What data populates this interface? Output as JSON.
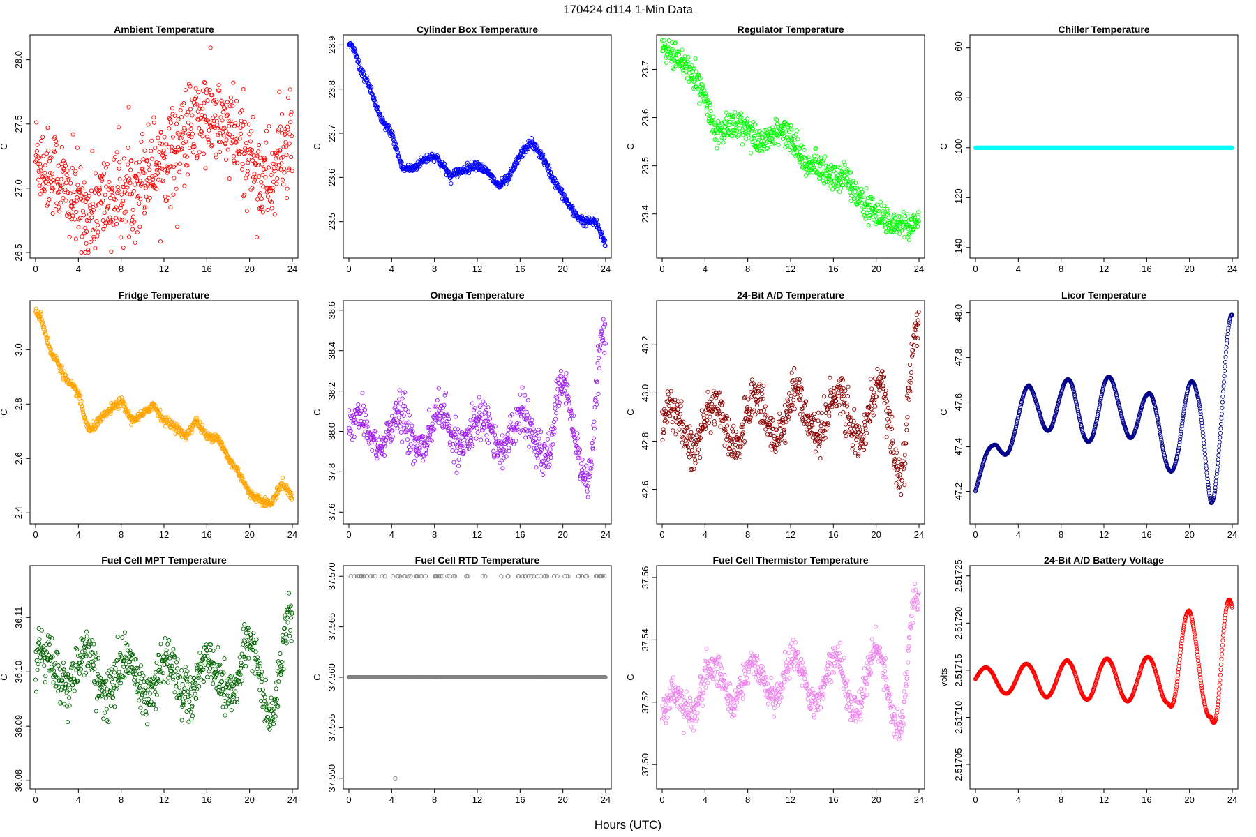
{
  "figure": {
    "suptitle": "170424    d114    1-Min Data",
    "xlabel": "Hours (UTC)"
  },
  "chart_data": [
    {
      "type": "scatter",
      "title": "Ambient Temperature",
      "ylabel": "C",
      "color": "#ff0000",
      "xlim": [
        0,
        24
      ],
      "ylim": [
        26.5,
        28.15
      ],
      "xticks": [
        0,
        4,
        8,
        12,
        16,
        20,
        24
      ],
      "yticks": [
        26.5,
        27.0,
        27.5,
        28.0
      ],
      "ytick_labels": [
        "26.5",
        "27.0",
        "27.5",
        "28.0"
      ],
      "trend": [
        [
          0,
          27.25
        ],
        [
          1,
          27.15
        ],
        [
          2,
          27.1
        ],
        [
          3,
          26.95
        ],
        [
          4,
          26.85
        ],
        [
          5,
          26.8
        ],
        [
          6,
          26.9
        ],
        [
          7,
          26.9
        ],
        [
          8,
          26.95
        ],
        [
          9,
          27.0
        ],
        [
          10,
          27.1
        ],
        [
          11,
          27.2
        ],
        [
          12,
          27.25
        ],
        [
          13,
          27.3
        ],
        [
          14,
          27.4
        ],
        [
          15,
          27.5
        ],
        [
          16,
          27.55
        ],
        [
          17,
          27.5
        ],
        [
          18,
          27.45
        ],
        [
          19,
          27.35
        ],
        [
          20,
          27.25
        ],
        [
          21,
          27.1
        ],
        [
          22,
          27.05
        ],
        [
          23,
          27.3
        ],
        [
          24,
          27.3
        ]
      ],
      "noise": 0.18,
      "spread": 0.09,
      "style": "scatter",
      "n": 1440
    },
    {
      "type": "scatter",
      "title": "Cylinder Box Temperature",
      "ylabel": "C",
      "color": "#0000ff",
      "xlim": [
        0,
        24
      ],
      "ylim": [
        23.43,
        23.91
      ],
      "xticks": [
        0,
        4,
        8,
        12,
        16,
        20,
        24
      ],
      "yticks": [
        23.5,
        23.6,
        23.7,
        23.8,
        23.9
      ],
      "ytick_labels": [
        "23.5",
        "23.6",
        "23.7",
        "23.8",
        "23.9"
      ],
      "trend": [
        [
          0,
          23.9
        ],
        [
          0.5,
          23.89
        ],
        [
          1,
          23.85
        ],
        [
          2,
          23.8
        ],
        [
          3,
          23.73
        ],
        [
          4,
          23.7
        ],
        [
          4.5,
          23.66
        ],
        [
          5,
          23.62
        ],
        [
          6,
          23.62
        ],
        [
          7,
          23.64
        ],
        [
          8,
          23.65
        ],
        [
          9,
          23.62
        ],
        [
          9.5,
          23.6
        ],
        [
          10,
          23.61
        ],
        [
          11,
          23.62
        ],
        [
          12,
          23.63
        ],
        [
          13,
          23.61
        ],
        [
          14,
          23.58
        ],
        [
          15,
          23.6
        ],
        [
          16,
          23.65
        ],
        [
          17,
          23.68
        ],
        [
          18,
          23.65
        ],
        [
          19,
          23.6
        ],
        [
          20,
          23.56
        ],
        [
          21,
          23.52
        ],
        [
          22,
          23.5
        ],
        [
          23,
          23.5
        ],
        [
          24,
          23.45
        ]
      ],
      "noise": 0.005,
      "spread": 0.0,
      "style": "line-ish",
      "n": 1440
    },
    {
      "type": "scatter",
      "title": "Regulator Temperature",
      "ylabel": "C",
      "color": "#00ff00",
      "xlim": [
        0,
        24
      ],
      "ylim": [
        23.32,
        23.76
      ],
      "xticks": [
        0,
        4,
        8,
        12,
        16,
        20,
        24
      ],
      "yticks": [
        23.4,
        23.5,
        23.6,
        23.7
      ],
      "ytick_labels": [
        "23.4",
        "23.5",
        "23.6",
        "23.7"
      ],
      "trend": [
        [
          0,
          23.75
        ],
        [
          1,
          23.73
        ],
        [
          2,
          23.71
        ],
        [
          3,
          23.69
        ],
        [
          4,
          23.64
        ],
        [
          5,
          23.56
        ],
        [
          6,
          23.58
        ],
        [
          7,
          23.59
        ],
        [
          8,
          23.58
        ],
        [
          9,
          23.55
        ],
        [
          10,
          23.56
        ],
        [
          11,
          23.57
        ],
        [
          12,
          23.56
        ],
        [
          13,
          23.52
        ],
        [
          14,
          23.5
        ],
        [
          15,
          23.5
        ],
        [
          16,
          23.47
        ],
        [
          17,
          23.48
        ],
        [
          18,
          23.44
        ],
        [
          19,
          23.42
        ],
        [
          20,
          23.4
        ],
        [
          21,
          23.39
        ],
        [
          22,
          23.38
        ],
        [
          23,
          23.37
        ],
        [
          24,
          23.39
        ]
      ],
      "noise": 0.02,
      "spread": 0.02,
      "style": "band",
      "n": 1440
    },
    {
      "type": "scatter",
      "title": "Chiller Temperature",
      "ylabel": "C",
      "color": "#00ffff",
      "xlim": [
        0,
        24
      ],
      "ylim": [
        -142,
        -57
      ],
      "xticks": [
        0,
        4,
        8,
        12,
        16,
        20,
        24
      ],
      "yticks": [
        -140,
        -120,
        -100,
        -80,
        -60
      ],
      "ytick_labels": [
        "-140",
        "-120",
        "-100",
        "-80",
        "-60"
      ],
      "trend": [
        [
          0,
          -100
        ],
        [
          24,
          -100
        ]
      ],
      "noise": 0,
      "spread": 0,
      "style": "flat",
      "n": 1440
    },
    {
      "type": "scatter",
      "title": "Fridge Temperature",
      "ylabel": "C",
      "color": "#ffa500",
      "xlim": [
        0,
        24
      ],
      "ylim": [
        2.38,
        3.16
      ],
      "xticks": [
        0,
        4,
        8,
        12,
        16,
        20,
        24
      ],
      "yticks": [
        2.4,
        2.6,
        2.8,
        3.0
      ],
      "ytick_labels": [
        "2.4",
        "2.6",
        "2.8",
        "3.0"
      ],
      "trend": [
        [
          0,
          3.14
        ],
        [
          0.5,
          3.12
        ],
        [
          1,
          3.05
        ],
        [
          1.5,
          2.98
        ],
        [
          2,
          2.96
        ],
        [
          3,
          2.88
        ],
        [
          3.5,
          2.86
        ],
        [
          4,
          2.84
        ],
        [
          4.5,
          2.76
        ],
        [
          5,
          2.7
        ],
        [
          6,
          2.74
        ],
        [
          7,
          2.78
        ],
        [
          8,
          2.81
        ],
        [
          9,
          2.74
        ],
        [
          10,
          2.76
        ],
        [
          11,
          2.8
        ],
        [
          12,
          2.74
        ],
        [
          13,
          2.72
        ],
        [
          14,
          2.68
        ],
        [
          15,
          2.74
        ],
        [
          16,
          2.68
        ],
        [
          17,
          2.68
        ],
        [
          18,
          2.6
        ],
        [
          19,
          2.55
        ],
        [
          20,
          2.47
        ],
        [
          21,
          2.45
        ],
        [
          22,
          2.43
        ],
        [
          23,
          2.51
        ],
        [
          24,
          2.46
        ]
      ],
      "noise": 0.008,
      "spread": 0.0,
      "style": "line-ish",
      "n": 1440
    },
    {
      "type": "scatter",
      "title": "Omega Temperature",
      "ylabel": "C",
      "color": "#a020f0",
      "xlim": [
        0,
        24
      ],
      "ylim": [
        37.57,
        38.62
      ],
      "xticks": [
        0,
        4,
        8,
        12,
        16,
        20,
        24
      ],
      "yticks": [
        37.6,
        37.8,
        38.0,
        38.2,
        38.4,
        38.6
      ],
      "ytick_labels": [
        "37.6",
        "37.8",
        "38.0",
        "38.2",
        "38.4",
        "38.6"
      ],
      "trend": [
        [
          0,
          38.0
        ],
        [
          24,
          38.0
        ]
      ],
      "noise": 0.08,
      "spread": 0.0,
      "style": "osc",
      "amp": [
        [
          0,
          0.08
        ],
        [
          18,
          0.1
        ],
        [
          19,
          0.25
        ],
        [
          22,
          0.2
        ],
        [
          23,
          0.55
        ],
        [
          24,
          0.45
        ]
      ],
      "n": 1440
    },
    {
      "type": "scatter",
      "title": "24-Bit A/D Temperature",
      "ylabel": "C",
      "color": "#8b0000",
      "xlim": [
        0,
        24
      ],
      "ylim": [
        42.48,
        43.36
      ],
      "xticks": [
        0,
        4,
        8,
        12,
        16,
        20,
        24
      ],
      "yticks": [
        42.6,
        42.8,
        43.0,
        43.2
      ],
      "ytick_labels": [
        "42.6",
        "42.8",
        "43.0",
        "43.2"
      ],
      "trend": [
        [
          0,
          42.86
        ],
        [
          4,
          42.86
        ],
        [
          8,
          42.88
        ],
        [
          12,
          42.92
        ],
        [
          16,
          42.92
        ],
        [
          20,
          42.88
        ],
        [
          22,
          42.9
        ],
        [
          24,
          42.95
        ]
      ],
      "noise": 0.07,
      "spread": 0.04,
      "style": "osc",
      "amp": [
        [
          0,
          0.08
        ],
        [
          18,
          0.1
        ],
        [
          22,
          0.2
        ],
        [
          23,
          0.4
        ],
        [
          24,
          0.35
        ]
      ],
      "n": 1440
    },
    {
      "type": "scatter",
      "title": "Licor Temperature",
      "ylabel": "C",
      "color": "#00008b",
      "xlim": [
        0,
        24
      ],
      "ylim": [
        47.08,
        48.03
      ],
      "xticks": [
        0,
        4,
        8,
        12,
        16,
        20,
        24
      ],
      "yticks": [
        47.2,
        47.4,
        47.6,
        47.8,
        48.0
      ],
      "ytick_labels": [
        "47.2",
        "47.4",
        "47.6",
        "47.8",
        "48.0"
      ],
      "trend": [
        [
          0,
          47.2
        ],
        [
          1,
          47.32
        ],
        [
          2,
          47.42
        ],
        [
          3,
          47.45
        ],
        [
          4,
          47.5
        ],
        [
          5,
          47.58
        ],
        [
          6,
          47.6
        ],
        [
          7,
          47.58
        ],
        [
          8,
          47.58
        ],
        [
          9,
          47.58
        ],
        [
          10,
          47.55
        ],
        [
          11,
          47.55
        ],
        [
          12,
          47.58
        ],
        [
          13,
          47.58
        ],
        [
          14,
          47.6
        ],
        [
          15,
          47.55
        ],
        [
          16,
          47.5
        ],
        [
          17,
          47.48
        ],
        [
          18,
          47.45
        ],
        [
          19,
          47.42
        ],
        [
          20,
          47.5
        ],
        [
          21,
          47.55
        ],
        [
          22,
          47.5
        ],
        [
          23,
          47.5
        ],
        [
          24,
          47.55
        ]
      ],
      "noise": 0.0,
      "spread": 0.0,
      "style": "osc",
      "amp": [
        [
          0,
          0.03
        ],
        [
          4,
          0.1
        ],
        [
          8,
          0.12
        ],
        [
          18,
          0.15
        ],
        [
          21,
          0.2
        ],
        [
          22,
          0.35
        ],
        [
          24,
          0.45
        ]
      ],
      "n": 1440
    },
    {
      "type": "scatter",
      "title": "Fuel Cell MPT Temperature",
      "ylabel": "C",
      "color": "#006400",
      "xlim": [
        0,
        24
      ],
      "ylim": [
        36.0795,
        36.1185
      ],
      "xticks": [
        0,
        4,
        8,
        12,
        16,
        20,
        24
      ],
      "yticks": [
        36.08,
        36.09,
        36.1,
        36.11
      ],
      "ytick_labels": [
        "36.08",
        "36.09",
        "36.10",
        "36.11"
      ],
      "trend": [
        [
          0,
          36.101
        ],
        [
          4,
          36.1
        ],
        [
          8,
          36.099
        ],
        [
          12,
          36.099
        ],
        [
          16,
          36.099
        ],
        [
          20,
          36.1
        ],
        [
          22,
          36.1
        ],
        [
          24,
          36.1
        ]
      ],
      "noise": 0.0035,
      "spread": 0.0025,
      "style": "osc",
      "amp": [
        [
          0,
          0.003
        ],
        [
          18,
          0.004
        ],
        [
          22,
          0.008
        ],
        [
          24,
          0.01
        ]
      ],
      "n": 1440
    },
    {
      "type": "scatter",
      "title": "Fuel Cell RTD Temperature",
      "ylabel": "C",
      "color": "#808080",
      "xlim": [
        0,
        24
      ],
      "ylim": [
        37.5495,
        37.5705
      ],
      "xticks": [
        0,
        4,
        8,
        12,
        16,
        20,
        24
      ],
      "yticks": [
        37.55,
        37.555,
        37.56,
        37.565,
        37.57
      ],
      "ytick_labels": [
        "37.550",
        "37.555",
        "37.560",
        "37.565",
        "37.570"
      ],
      "trend": [
        [
          0,
          37.56
        ],
        [
          24,
          37.56
        ]
      ],
      "noise": 0,
      "spread": 0,
      "style": "quantized",
      "levels": [
        37.55,
        37.56,
        37.57
      ],
      "n": 1440
    },
    {
      "type": "scatter",
      "title": "Fuel Cell Thermistor Temperature",
      "ylabel": "C",
      "color": "#ee82ee",
      "xlim": [
        0,
        24
      ],
      "ylim": [
        37.494,
        37.562
      ],
      "xticks": [
        0,
        4,
        8,
        12,
        16,
        20,
        24
      ],
      "yticks": [
        37.5,
        37.52,
        37.54,
        37.56
      ],
      "ytick_labels": [
        "37.50",
        "37.52",
        "37.54",
        "37.56"
      ],
      "trend": [
        [
          0,
          37.515
        ],
        [
          4,
          37.525
        ],
        [
          8,
          37.527
        ],
        [
          12,
          37.528
        ],
        [
          16,
          37.527
        ],
        [
          20,
          37.525
        ],
        [
          22,
          37.528
        ],
        [
          24,
          37.528
        ]
      ],
      "noise": 0.004,
      "spread": 0.003,
      "style": "osc",
      "amp": [
        [
          0,
          0.005
        ],
        [
          18,
          0.008
        ],
        [
          22,
          0.015
        ],
        [
          23,
          0.03
        ],
        [
          24,
          0.025
        ]
      ],
      "n": 1440
    },
    {
      "type": "scatter",
      "title": "24-Bit A/D Battery Voltage",
      "ylabel": "volts",
      "color": "#ff0000",
      "xlim": [
        0,
        24
      ],
      "ylim": [
        2.51703,
        2.517255
      ],
      "xticks": [
        0,
        4,
        8,
        12,
        16,
        20,
        24
      ],
      "yticks": [
        2.51705,
        2.5171,
        2.51715,
        2.5172,
        2.51725
      ],
      "ytick_labels": [
        "2.51705",
        "2.51710",
        "2.51715",
        "2.51720",
        "2.51725"
      ],
      "trend": [
        [
          0,
          2.51714
        ],
        [
          4,
          2.51714
        ],
        [
          8,
          2.51714
        ],
        [
          12,
          2.51714
        ],
        [
          16,
          2.51714
        ],
        [
          18,
          2.51714
        ],
        [
          20,
          2.51716
        ],
        [
          22,
          2.51714
        ],
        [
          24,
          2.51714
        ]
      ],
      "noise": 0.0,
      "spread": 0.0,
      "style": "osc",
      "amp": [
        [
          0,
          1.2e-05
        ],
        [
          8,
          2e-05
        ],
        [
          18,
          2.5e-05
        ],
        [
          19,
          6e-05
        ],
        [
          22,
          4e-05
        ],
        [
          23,
          0.0001
        ],
        [
          24,
          8e-05
        ]
      ],
      "n": 1440
    }
  ]
}
